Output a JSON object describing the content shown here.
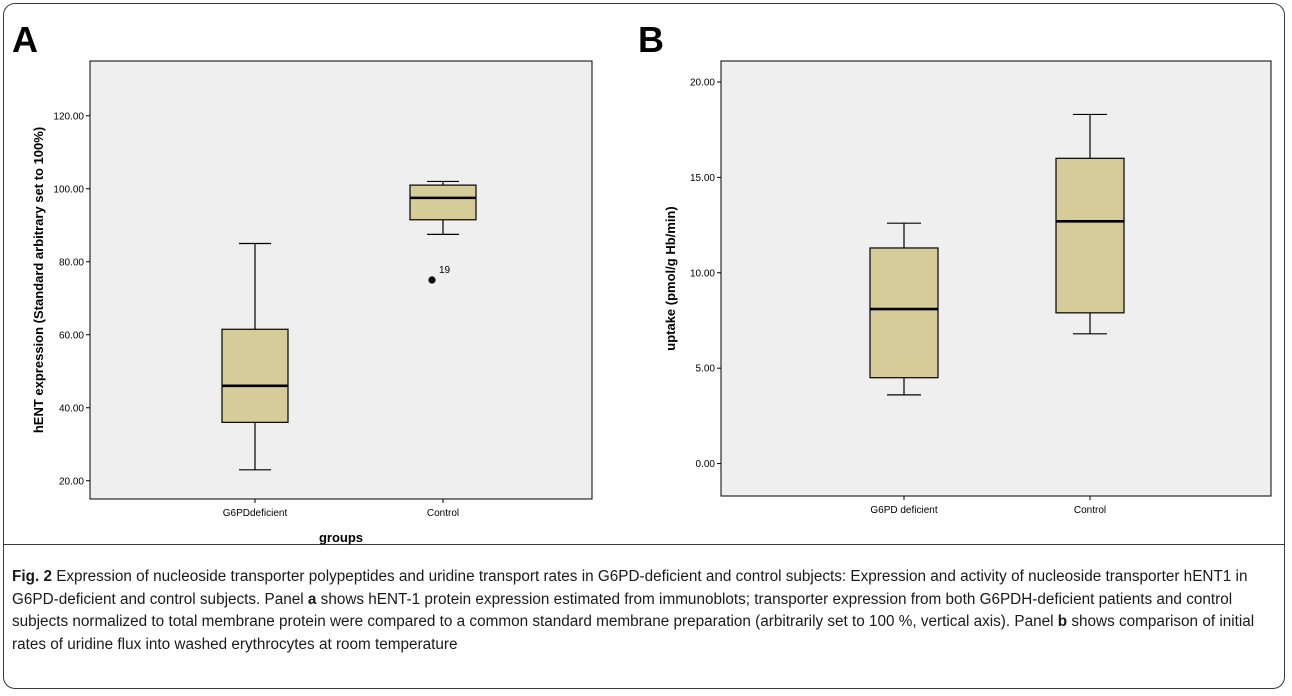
{
  "caption": {
    "label": "Fig. 2",
    "text_1": " Expression of nucleoside transporter polypeptides and uridine transport rates in G6PD-deficient and control subjects: Expression and activity of nucleoside transporter hENT1 in G6PD-deficient and control subjects. Panel ",
    "bold_a": "a",
    "text_2": " shows hENT-1 protein expression estimated from immunoblots; transporter expression from both G6PDH-deficient patients and control subjects normalized to total membrane protein were compared to a common standard membrane preparation (arbitrarily set to 100 %, vertical axis). Panel ",
    "bold_b": "b",
    "text_3": " shows comparison of initial rates of uridine flux into washed erythrocytes at room temperature"
  },
  "colors": {
    "plot_background": "#efefef",
    "box_fill": "#d6cc99",
    "box_stroke": "#000000"
  },
  "chart_data": [
    {
      "panel": "A",
      "type": "box",
      "xlabel": "groups",
      "ylabel": "hENT expression (Standard arbitrary set to 100%)",
      "ylim": [
        15,
        135
      ],
      "yticks": [
        20,
        40,
        60,
        80,
        100,
        120
      ],
      "ytick_labels": [
        "20.00",
        "40.00",
        "60.00",
        "80.00",
        "100.00",
        "120.00"
      ],
      "categories": [
        "G6PDdeficient",
        "Control"
      ],
      "boxes": [
        {
          "category": "G6PDdeficient",
          "whisker_low": 23,
          "q1": 36,
          "median": 46,
          "q3": 61.5,
          "whisker_high": 85
        },
        {
          "category": "Control",
          "whisker_low": 87.5,
          "q1": 91.5,
          "median": 97.5,
          "q3": 101,
          "whisker_high": 102
        }
      ],
      "outliers": [
        {
          "category": "Control",
          "value": 75,
          "label": "19"
        }
      ],
      "grid": false
    },
    {
      "panel": "B",
      "type": "box",
      "xlabel": "",
      "ylabel": "uptake (pmol/g Hb/min)",
      "ylim": [
        -1.7,
        21.1
      ],
      "yticks": [
        0,
        5,
        10,
        15,
        20
      ],
      "ytick_labels": [
        "0.00",
        "5.00",
        "10.00",
        "15.00",
        "20.00"
      ],
      "categories": [
        "G6PD deficient",
        "Control"
      ],
      "boxes": [
        {
          "category": "G6PD deficient",
          "whisker_low": 3.6,
          "q1": 4.5,
          "median": 8.1,
          "q3": 11.3,
          "whisker_high": 12.6
        },
        {
          "category": "Control",
          "whisker_low": 6.8,
          "q1": 7.9,
          "median": 12.7,
          "q3": 16.0,
          "whisker_high": 18.3
        }
      ],
      "outliers": [],
      "grid": false
    }
  ]
}
